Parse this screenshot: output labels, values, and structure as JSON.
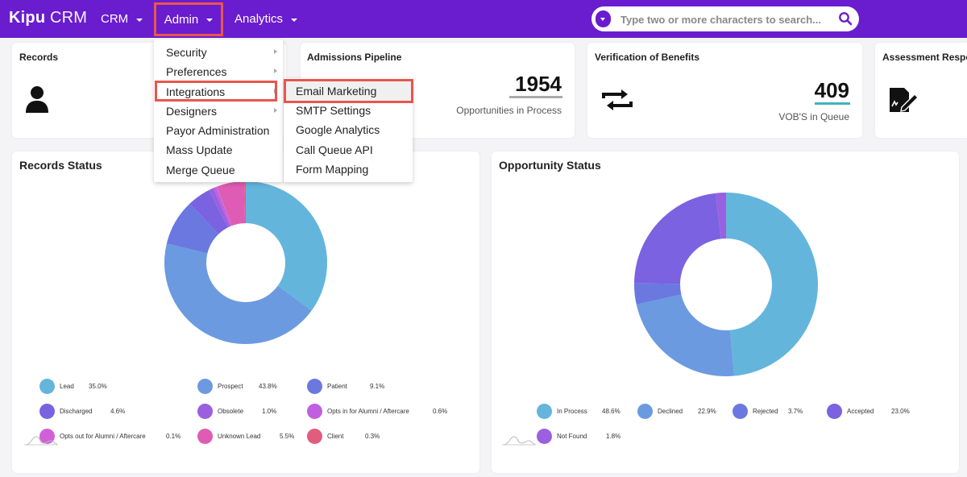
{
  "brand": {
    "bold": "Kipu",
    "light": "CRM"
  },
  "nav": [
    {
      "label": "CRM"
    },
    {
      "label": "Admin"
    },
    {
      "label": "Analytics"
    }
  ],
  "search": {
    "placeholder": "Type two or more characters to search..."
  },
  "cards": {
    "records": {
      "title": "Records"
    },
    "admissions": {
      "title": "Admissions Pipeline",
      "value": "1954",
      "subtitle": "Opportunities in Process"
    },
    "vob": {
      "title": "Verification of Benefits",
      "value": "409",
      "subtitle": "VOB'S in Queue"
    },
    "assessment": {
      "title": "Assessment Respo"
    }
  },
  "admin_menu": [
    {
      "label": "Security",
      "submenu": true
    },
    {
      "label": "Preferences",
      "submenu": true
    },
    {
      "label": "Integrations",
      "submenu": true
    },
    {
      "label": "Designers",
      "submenu": true
    },
    {
      "label": "Payor Administration",
      "submenu": false
    },
    {
      "label": "Mass Update",
      "submenu": false
    },
    {
      "label": "Merge Queue",
      "submenu": false
    }
  ],
  "integrations_menu": [
    {
      "label": "Email Marketing"
    },
    {
      "label": "SMTP Settings"
    },
    {
      "label": "Google Analytics"
    },
    {
      "label": "Call Queue API"
    },
    {
      "label": "Form Mapping"
    }
  ],
  "records_status": {
    "title": "Records Status",
    "legend": [
      {
        "label": "Lead",
        "pct": "35.0%",
        "color": "#64b5dc"
      },
      {
        "label": "Prospect",
        "pct": "43.8%",
        "color": "#6b9ae0"
      },
      {
        "label": "Patient",
        "pct": "9.1%",
        "color": "#6a78e0"
      },
      {
        "label": "Discharged",
        "pct": "4.6%",
        "color": "#7a62e0"
      },
      {
        "label": "Obsolete",
        "pct": "1.0%",
        "color": "#9a60e0"
      },
      {
        "label": "Opts in for Alumni / Aftercare",
        "pct": "0.6%",
        "color": "#c060e0"
      },
      {
        "label": "Opts out for Alumni / Aftercare",
        "pct": "0.1%",
        "color": "#d060d8"
      },
      {
        "label": "Unknown Lead",
        "pct": "5.5%",
        "color": "#de5cb4"
      },
      {
        "label": "Client",
        "pct": "0.3%",
        "color": "#e25c7c"
      }
    ]
  },
  "opportunity_status": {
    "title": "Opportunity Status",
    "legend": [
      {
        "label": "In Process",
        "pct": "48.6%",
        "color": "#64b5dc"
      },
      {
        "label": "Declined",
        "pct": "22.9%",
        "color": "#6b9ae0"
      },
      {
        "label": "Rejected",
        "pct": "3.7%",
        "color": "#6a78e0"
      },
      {
        "label": "Accepted",
        "pct": "23.0%",
        "color": "#7a62e0"
      },
      {
        "label": "Not Found",
        "pct": "1.8%",
        "color": "#9a60e0"
      }
    ]
  },
  "chart_data": [
    {
      "type": "pie",
      "title": "Records Status",
      "categories": [
        "Lead",
        "Prospect",
        "Patient",
        "Discharged",
        "Obsolete",
        "Opts in for Alumni / Aftercare",
        "Opts out for Alumni / Aftercare",
        "Unknown Lead",
        "Client"
      ],
      "values": [
        35.0,
        43.8,
        9.1,
        4.6,
        1.0,
        0.6,
        0.1,
        5.5,
        0.3
      ],
      "colors": [
        "#64b5dc",
        "#6b9ae0",
        "#6a78e0",
        "#7a62e0",
        "#9a60e0",
        "#c060e0",
        "#d060d8",
        "#de5cb4",
        "#e25c7c"
      ],
      "donut": true
    },
    {
      "type": "pie",
      "title": "Opportunity Status",
      "categories": [
        "In Process",
        "Declined",
        "Rejected",
        "Accepted",
        "Not Found"
      ],
      "values": [
        48.6,
        22.9,
        3.7,
        23.0,
        1.8
      ],
      "colors": [
        "#64b5dc",
        "#6b9ae0",
        "#6a78e0",
        "#7a62e0",
        "#9a60e0"
      ],
      "donut": true
    }
  ],
  "colors": {
    "topbar": "#6a1ccf",
    "highlight": "#e8564d",
    "underline_admissions": "#aaaaaa",
    "underline_vob": "#3fb2c2"
  }
}
